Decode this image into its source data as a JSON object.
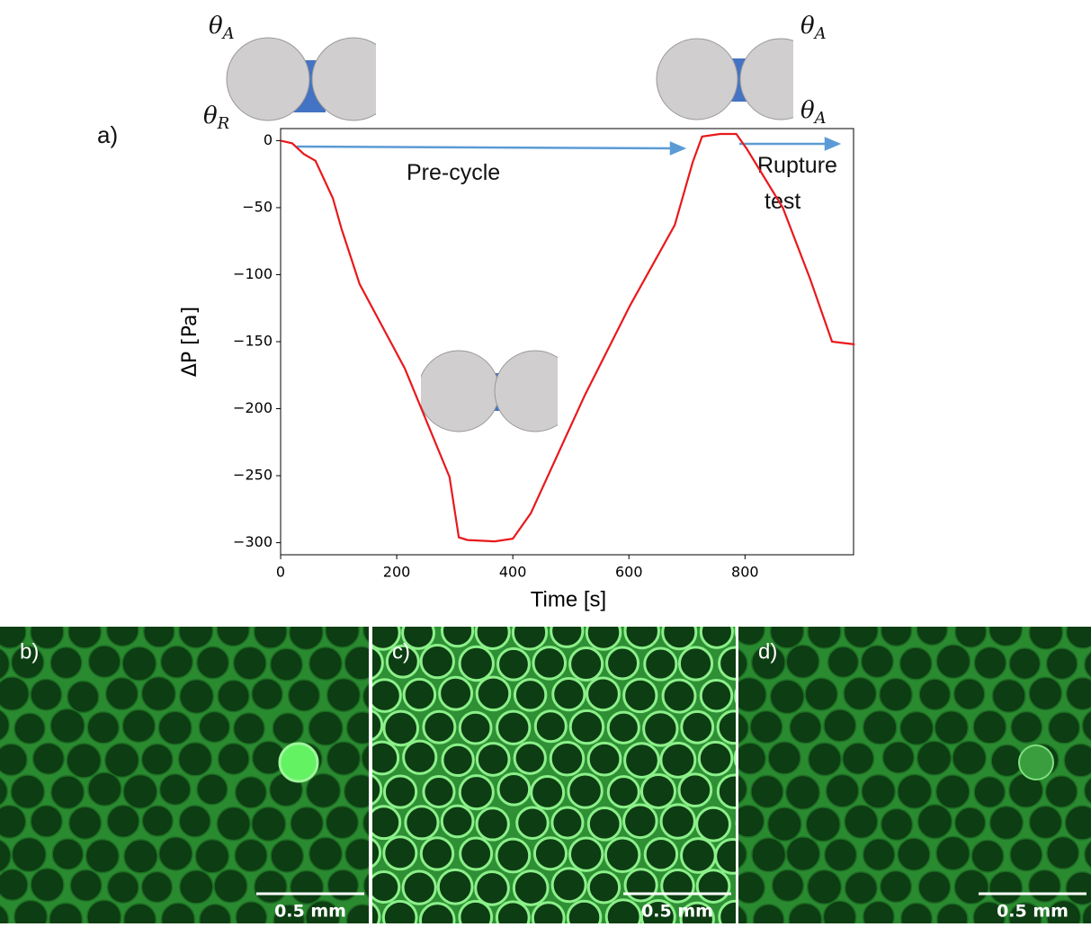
{
  "chart_data": {
    "type": "line",
    "panel_label": "a)",
    "x_label": "Time [s]",
    "y_label": "ΔP [Pa]",
    "x": [
      0,
      20,
      40,
      60,
      90,
      105,
      136,
      214,
      291,
      307,
      322,
      369,
      400,
      431,
      524,
      602,
      679,
      710,
      726,
      757,
      785,
      803,
      865,
      912,
      950,
      989
    ],
    "series": [
      {
        "color": "#e8191c",
        "values": [
          0,
          -2,
          -10,
          -15,
          -43,
          -66,
          -107,
          -170,
          -251,
          -296,
          -298,
          -299,
          -297,
          -278,
          -190,
          -123,
          -63,
          -16,
          3,
          5,
          5,
          -6,
          -50,
          -103,
          -150,
          -152
        ]
      }
    ],
    "xlim": [
      0,
      987
    ],
    "ylim": [
      -309,
      9
    ],
    "xticks": [
      0,
      200,
      400,
      600,
      800
    ],
    "yticks": [
      0,
      {
        "value": -50,
        "label": "−50"
      },
      {
        "value": -100,
        "label": "−100"
      },
      {
        "value": -150,
        "label": "−150"
      },
      {
        "value": -200,
        "label": "−200"
      },
      {
        "value": -250,
        "label": "−250"
      },
      {
        "value": -300,
        "label": "−300"
      }
    ],
    "annotations": [
      {
        "lines": [
          "Pre-cycle"
        ]
      },
      {
        "lines": [
          "Rupture",
          "test"
        ]
      }
    ],
    "theta_labels": [
      {
        "symbol": "θ",
        "sub": "A"
      },
      {
        "symbol": "θ",
        "sub": "R"
      },
      {
        "symbol": "θ",
        "sub": "A"
      },
      {
        "symbol": "θ",
        "sub": "A"
      }
    ]
  },
  "images": [
    {
      "label": "b)",
      "scale_bar": "0.5 mm"
    },
    {
      "label": "c)",
      "scale_bar": "0.5 mm"
    },
    {
      "label": "d)",
      "scale_bar": "0.5 mm"
    }
  ]
}
